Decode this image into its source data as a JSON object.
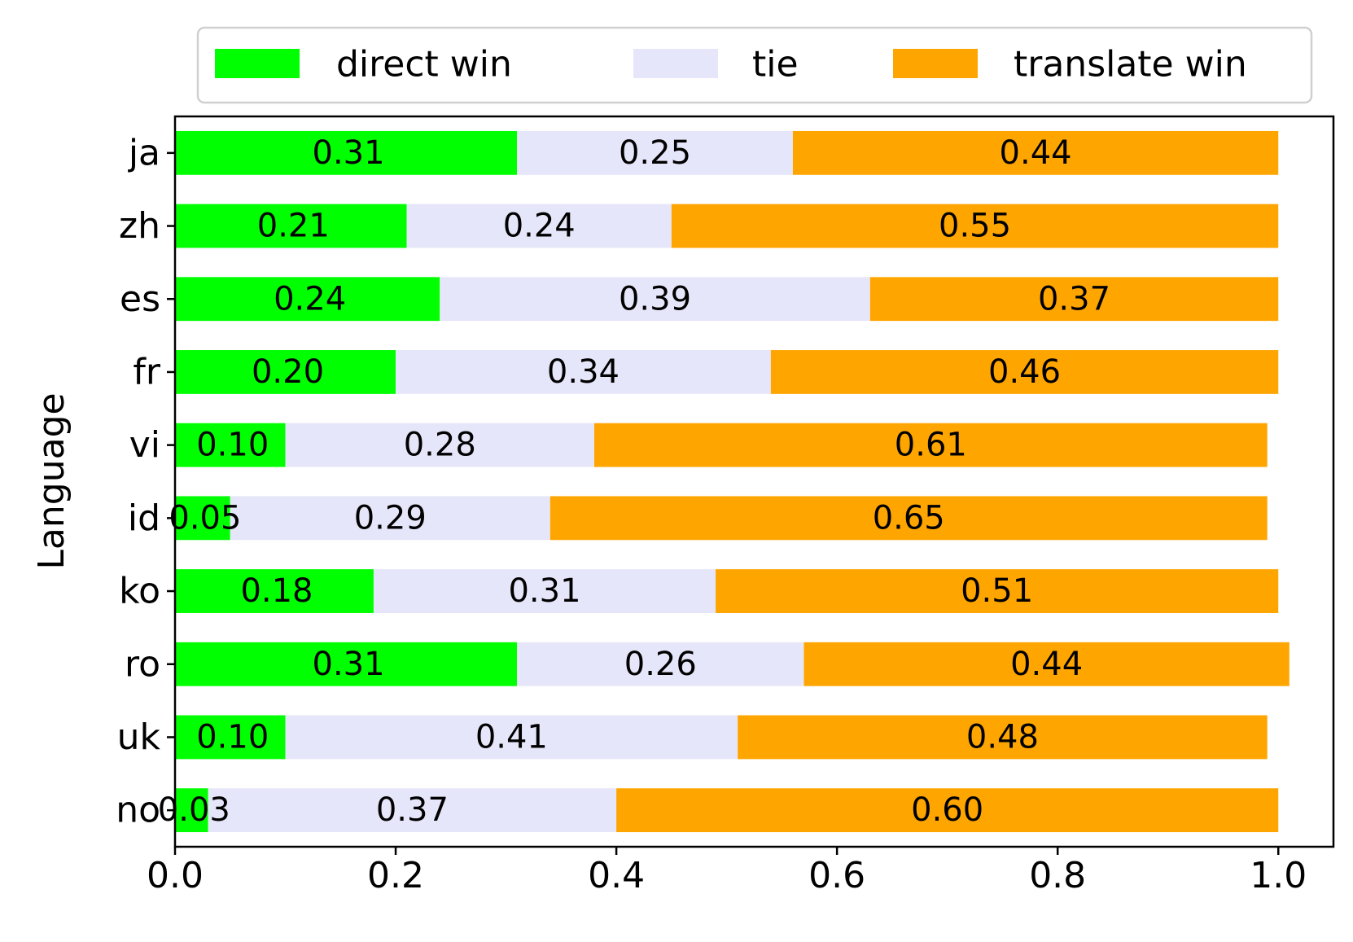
{
  "chart_data": {
    "type": "bar",
    "orientation": "horizontal",
    "stacked": true,
    "title": "",
    "xlabel": "",
    "ylabel": "Language",
    "xlim": [
      0.0,
      1.05
    ],
    "xticks": [
      "0.0",
      "0.2",
      "0.4",
      "0.6",
      "0.8",
      "1.0"
    ],
    "grid": false,
    "legend_position": "top-center",
    "categories": [
      "ja",
      "zh",
      "es",
      "fr",
      "vi",
      "id",
      "ko",
      "ro",
      "uk",
      "no"
    ],
    "series": [
      {
        "name": "direct win",
        "color": "#00ff00",
        "values": [
          0.31,
          0.21,
          0.24,
          0.2,
          0.1,
          0.05,
          0.18,
          0.31,
          0.1,
          0.03
        ],
        "labels": [
          "0.31",
          "0.21",
          "0.24",
          "0.20",
          "0.10",
          "0.05",
          "0.18",
          "0.31",
          "0.10",
          "0.03"
        ]
      },
      {
        "name": "tie",
        "color": "#e6e6fa",
        "values": [
          0.25,
          0.24,
          0.39,
          0.34,
          0.28,
          0.29,
          0.31,
          0.26,
          0.41,
          0.37
        ],
        "labels": [
          "0.25",
          "0.24",
          "0.39",
          "0.34",
          "0.28",
          "0.29",
          "0.31",
          "0.26",
          "0.41",
          "0.37"
        ]
      },
      {
        "name": "translate win",
        "color": "#ffa500",
        "values": [
          0.44,
          0.55,
          0.37,
          0.46,
          0.61,
          0.65,
          0.51,
          0.44,
          0.48,
          0.6
        ],
        "labels": [
          "0.44",
          "0.55",
          "0.37",
          "0.46",
          "0.61",
          "0.65",
          "0.51",
          "0.44",
          "0.48",
          "0.60"
        ]
      }
    ]
  }
}
